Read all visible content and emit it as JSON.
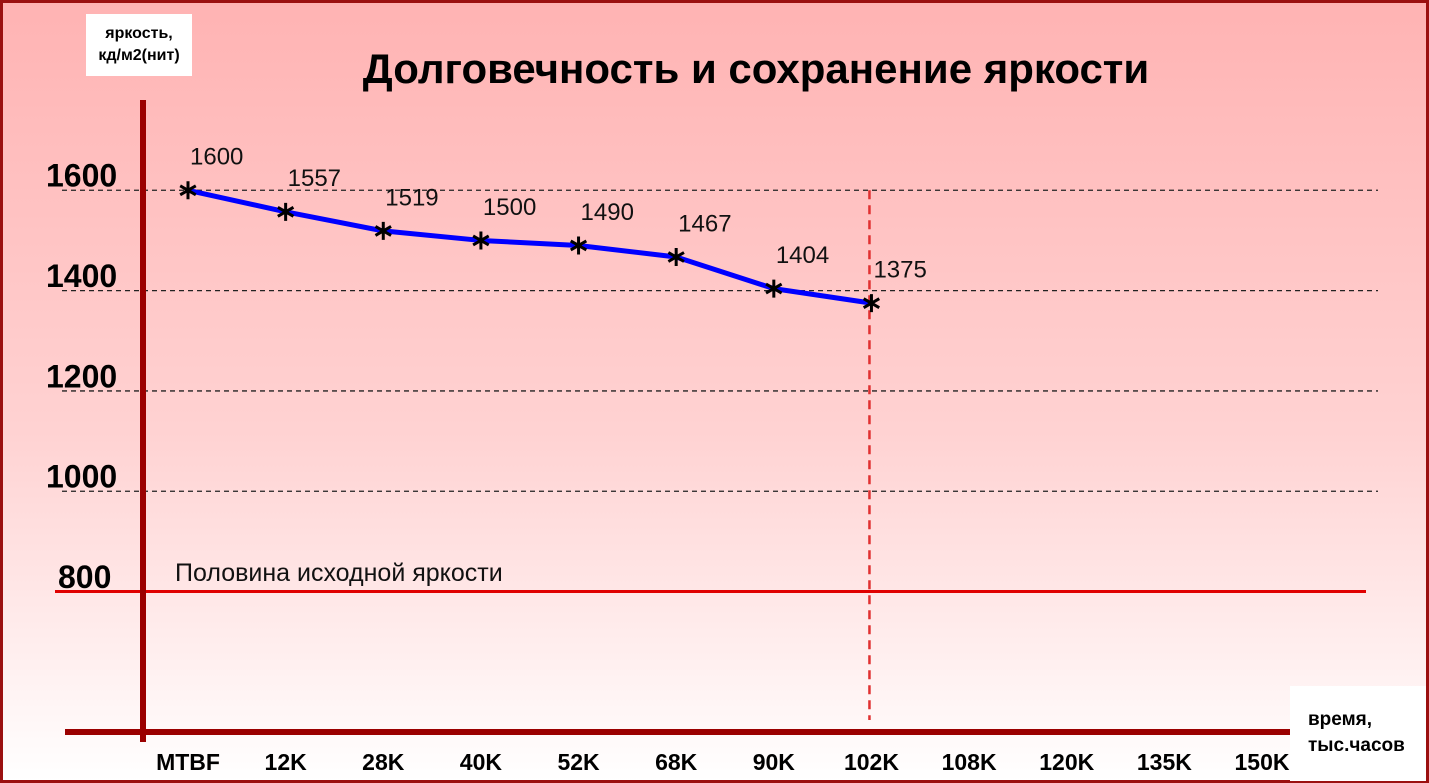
{
  "chart_data": {
    "type": "line",
    "title": "Долговечность и сохранение яркости",
    "y_label": "яркость, кд/м2(нит)",
    "x_label": "время, тыс.часов",
    "categories": [
      "MTBF",
      "12K",
      "28K",
      "40K",
      "52K",
      "68K",
      "90K",
      "102K",
      "108K",
      "120K",
      "135K",
      "150K"
    ],
    "series": [
      {
        "name": null,
        "color": "#0000ff",
        "values": [
          1600,
          1557,
          1519,
          1500,
          1490,
          1467,
          1404,
          1375,
          null,
          null,
          null,
          null
        ]
      },
      {
        "name": null,
        "color": "#8b1010",
        "style": "dash-dot",
        "values": [
          null,
          null,
          null,
          null,
          null,
          null,
          null,
          1375,
          null,
          null,
          null,
          800
        ]
      }
    ],
    "ylim": [
      520,
      1780
    ],
    "yticks": [
      800,
      1000,
      1200,
      1400,
      1600
    ],
    "grid": true,
    "reference_line": {
      "value": 800,
      "label": "Половина исходной яркости",
      "color": "#e00000"
    },
    "highlight_category": "102K",
    "highlight_color": "#e03030"
  }
}
